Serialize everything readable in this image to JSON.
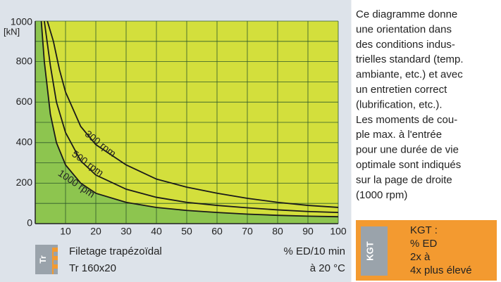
{
  "chart_data": {
    "type": "line",
    "y_label": "[kN]",
    "xlim": [
      0,
      100
    ],
    "xticks": [
      10,
      20,
      30,
      40,
      50,
      60,
      70,
      80,
      90,
      100
    ],
    "ylim": [
      0,
      1000
    ],
    "yticks": [
      0,
      200,
      400,
      600,
      800,
      1000
    ],
    "yminor": [
      100,
      300,
      500,
      700,
      900
    ],
    "grid": true,
    "background_color": "#d3df3c",
    "area_color": "#8dc54f",
    "series": [
      {
        "name": "300 rpm",
        "color": "#1a1a1a",
        "x": [
          4,
          6,
          8,
          10,
          15,
          20,
          30,
          40,
          50,
          60,
          70,
          80,
          90,
          100
        ],
        "values": [
          1000,
          900,
          760,
          650,
          480,
          390,
          290,
          220,
          180,
          150,
          125,
          105,
          90,
          80
        ]
      },
      {
        "name": "500 rpm",
        "color": "#1a1a1a",
        "x": [
          3,
          5,
          7,
          10,
          15,
          20,
          30,
          40,
          50,
          60,
          70,
          80,
          90,
          100
        ],
        "values": [
          1000,
          780,
          600,
          450,
          310,
          240,
          170,
          130,
          105,
          90,
          78,
          68,
          60,
          55
        ]
      },
      {
        "name": "1000 rpm",
        "color": "#1a1a1a",
        "x": [
          2,
          3,
          5,
          7,
          10,
          15,
          20,
          30,
          40,
          50,
          60,
          70,
          80,
          90,
          100
        ],
        "values": [
          1000,
          800,
          540,
          400,
          290,
          200,
          150,
          105,
          80,
          65,
          55,
          47,
          41,
          37,
          34
        ]
      }
    ]
  },
  "footer": {
    "icon": "Tr",
    "thread": "Filetage trapézoïdal",
    "size": "Tr 160x20",
    "duty": "% ED/10 min",
    "temp": "à 20 °C"
  },
  "text": {
    "lines": [
      "Ce diagramme donne",
      "une orientation dans",
      "des conditions indus-",
      "trielles standard (temp.",
      "ambiante, etc.) et avec",
      "un entretien correct",
      "(lubrification, etc.).",
      "Les moments de cou-",
      "ple max. à l'entrée",
      "pour une durée de vie",
      "optimale sont indiqués",
      "sur la page de droite",
      "(1000 rpm)"
    ]
  },
  "kgt": {
    "icon": "KGT",
    "lines": [
      "KGT :",
      "% ED",
      "2x à",
      "4x plus élevé"
    ]
  }
}
